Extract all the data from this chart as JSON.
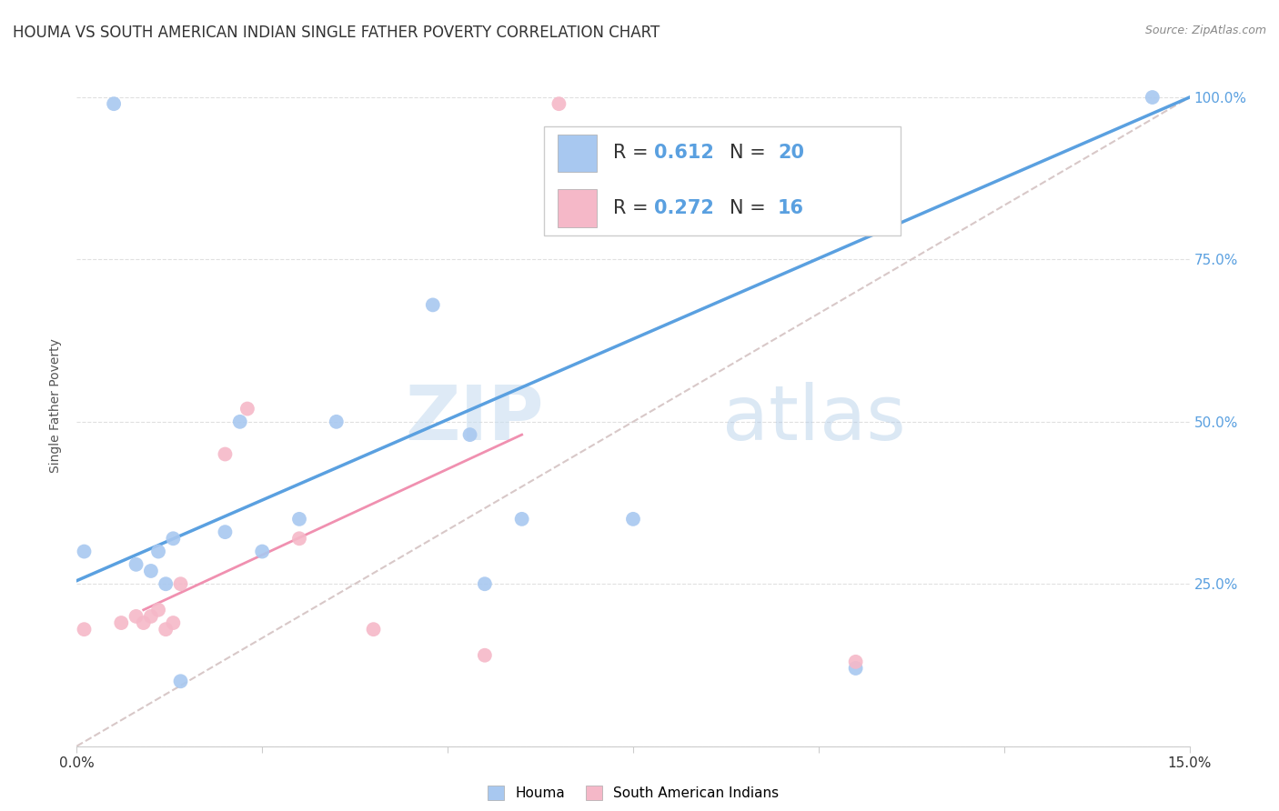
{
  "title": "HOUMA VS SOUTH AMERICAN INDIAN SINGLE FATHER POVERTY CORRELATION CHART",
  "source": "Source: ZipAtlas.com",
  "ylabel": "Single Father Poverty",
  "xlim": [
    0.0,
    0.15
  ],
  "ylim": [
    0.0,
    1.05
  ],
  "xticks": [
    0.0,
    0.025,
    0.05,
    0.075,
    0.1,
    0.125,
    0.15
  ],
  "xtick_labels": [
    "0.0%",
    "",
    "",
    "",
    "",
    "",
    "15.0%"
  ],
  "ytick_labels_right": [
    "25.0%",
    "50.0%",
    "75.0%",
    "100.0%"
  ],
  "ytick_vals_right": [
    0.25,
    0.5,
    0.75,
    1.0
  ],
  "houma_R": 0.612,
  "houma_N": 20,
  "sai_R": 0.272,
  "sai_N": 16,
  "houma_color": "#a8c8f0",
  "sai_color": "#f5b8c8",
  "houma_line_color": "#5aa0e0",
  "sai_line_color": "#f090b0",
  "ref_line_color": "#d8c8c8",
  "watermark_zip": "ZIP",
  "watermark_atlas": "atlas",
  "houma_x": [
    0.001,
    0.005,
    0.008,
    0.01,
    0.011,
    0.012,
    0.013,
    0.014,
    0.02,
    0.022,
    0.025,
    0.03,
    0.035,
    0.048,
    0.053,
    0.055,
    0.06,
    0.075,
    0.105,
    0.145
  ],
  "houma_y": [
    0.3,
    0.99,
    0.28,
    0.27,
    0.3,
    0.25,
    0.32,
    0.1,
    0.33,
    0.5,
    0.3,
    0.35,
    0.5,
    0.68,
    0.48,
    0.25,
    0.35,
    0.35,
    0.12,
    1.0
  ],
  "sai_x": [
    0.001,
    0.006,
    0.008,
    0.009,
    0.01,
    0.011,
    0.012,
    0.013,
    0.014,
    0.02,
    0.023,
    0.03,
    0.04,
    0.055,
    0.065,
    0.105
  ],
  "sai_y": [
    0.18,
    0.19,
    0.2,
    0.19,
    0.2,
    0.21,
    0.18,
    0.19,
    0.25,
    0.45,
    0.52,
    0.32,
    0.18,
    0.14,
    0.99,
    0.13
  ],
  "houma_line_x0": 0.0,
  "houma_line_y0": 0.255,
  "houma_line_x1": 0.15,
  "houma_line_y1": 1.0,
  "sai_line_x0": 0.009,
  "sai_line_y0": 0.21,
  "sai_line_x1": 0.06,
  "sai_line_y1": 0.48,
  "ref_line_x0": 0.0,
  "ref_line_y0": 0.0,
  "ref_line_x1": 0.15,
  "ref_line_y1": 1.0,
  "background_color": "#ffffff",
  "grid_color": "#e0e0e0",
  "title_fontsize": 12,
  "axis_label_fontsize": 10,
  "tick_fontsize": 11,
  "legend_fontsize": 15
}
